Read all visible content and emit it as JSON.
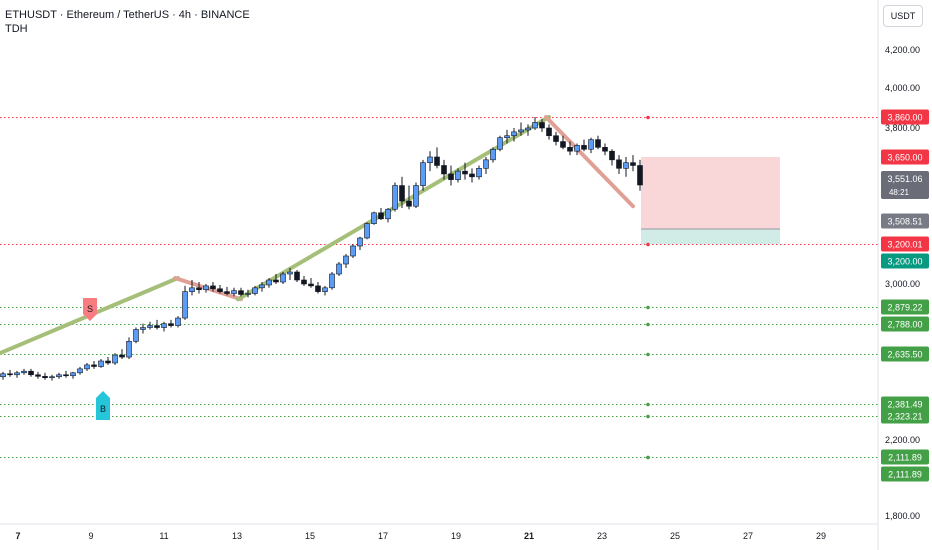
{
  "header": {
    "symbol": "ETHUSDT",
    "name": "Ethereum / TetherUS",
    "interval": "4h",
    "exchange": "BINANCE",
    "title": "ETHUSDT · Ethereum / TetherUS · 4h · BINANCE",
    "indicator": "TDH"
  },
  "currency_button": "USDT",
  "price_axis": {
    "ticks": [
      "4,200.00",
      "4,000.00",
      "3,800.00",
      "3,000.00",
      "2,200.00",
      "1,800.00"
    ]
  },
  "time_axis": {
    "ticks": [
      {
        "label": "7",
        "bold": true
      },
      {
        "label": "9",
        "bold": false
      },
      {
        "label": "11",
        "bold": false
      },
      {
        "label": "13",
        "bold": false
      },
      {
        "label": "15",
        "bold": false
      },
      {
        "label": "17",
        "bold": false
      },
      {
        "label": "19",
        "bold": false
      },
      {
        "label": "21",
        "bold": true
      },
      {
        "label": "23",
        "bold": false
      },
      {
        "label": "25",
        "bold": false
      },
      {
        "label": "27",
        "bold": false
      },
      {
        "label": "29",
        "bold": false
      }
    ]
  },
  "price_levels": [
    {
      "price": 3860,
      "label": "3,860.00",
      "kind": "resistance",
      "color": "#f23645"
    },
    {
      "price": 3200.01,
      "label": "3,200.01",
      "kind": "resistance",
      "color": "#f23645"
    },
    {
      "price": 2879.22,
      "label": "2,879.22",
      "kind": "support",
      "color": "#43a047"
    },
    {
      "price": 2788,
      "label": "2,788.00",
      "kind": "support",
      "color": "#43a047"
    },
    {
      "price": 2635.5,
      "label": "2,635.50",
      "kind": "support",
      "color": "#43a047"
    },
    {
      "price": 2381.49,
      "label": "2,381.49",
      "kind": "support",
      "color": "#43a047"
    },
    {
      "price": 2323.21,
      "label": "2,323.21",
      "kind": "support",
      "color": "#43a047"
    },
    {
      "price": 2111.89,
      "label": "2,111.89",
      "kind": "support",
      "color": "#43a047"
    },
    {
      "price": 2111.89,
      "label": "2,111.89",
      "kind": "support",
      "color": "#43a047"
    }
  ],
  "axis_badges": {
    "stop": {
      "price": 3650,
      "label": "3,650.00",
      "color": "#f23645"
    },
    "current": {
      "price": 3551.06,
      "label": "3,551.06",
      "countdown": "48:21",
      "color": "#6a6d78"
    },
    "entry": {
      "price": 3508.51,
      "label": "3,508.51",
      "color": "#787b86"
    },
    "target": {
      "price": 3200,
      "label": "3,200.00",
      "color": "#089981"
    }
  },
  "signals": [
    {
      "type": "sell",
      "label": "S",
      "color": "#f77c80"
    },
    {
      "type": "buy",
      "label": "B",
      "color": "#26c6da"
    }
  ],
  "colors": {
    "up_candle": "#5b9cf6",
    "down_candle": "#131722",
    "trend_up": "#a5be78",
    "trend_down": "#e0a095",
    "stop_zone": "#f9d6d7",
    "target_zone": "#d1ece6"
  },
  "chart_data": {
    "type": "candlestick",
    "candles": [
      [
        2520,
        2545,
        2505,
        2535
      ],
      [
        2535,
        2555,
        2520,
        2530
      ],
      [
        2530,
        2550,
        2515,
        2540
      ],
      [
        2540,
        2560,
        2530,
        2548
      ],
      [
        2548,
        2560,
        2520,
        2530
      ],
      [
        2530,
        2545,
        2510,
        2522
      ],
      [
        2522,
        2540,
        2505,
        2515
      ],
      [
        2515,
        2530,
        2500,
        2520
      ],
      [
        2520,
        2540,
        2510,
        2530
      ],
      [
        2530,
        2550,
        2515,
        2525
      ],
      [
        2525,
        2545,
        2510,
        2540
      ],
      [
        2540,
        2570,
        2530,
        2560
      ],
      [
        2560,
        2590,
        2550,
        2580
      ],
      [
        2580,
        2600,
        2560,
        2572
      ],
      [
        2572,
        2610,
        2565,
        2600
      ],
      [
        2600,
        2620,
        2580,
        2590
      ],
      [
        2590,
        2640,
        2580,
        2630
      ],
      [
        2630,
        2660,
        2610,
        2620
      ],
      [
        2620,
        2720,
        2610,
        2700
      ],
      [
        2700,
        2770,
        2690,
        2760
      ],
      [
        2760,
        2790,
        2740,
        2770
      ],
      [
        2770,
        2800,
        2760,
        2780
      ],
      [
        2780,
        2810,
        2760,
        2770
      ],
      [
        2770,
        2800,
        2750,
        2790
      ],
      [
        2790,
        2810,
        2770,
        2780
      ],
      [
        2780,
        2830,
        2770,
        2820
      ],
      [
        2820,
        2990,
        2810,
        2960
      ],
      [
        2960,
        3020,
        2940,
        2980
      ],
      [
        2980,
        3010,
        2950,
        2970
      ],
      [
        2970,
        3000,
        2955,
        2990
      ],
      [
        2990,
        3010,
        2960,
        2975
      ],
      [
        2975,
        2995,
        2950,
        2960
      ],
      [
        2960,
        2985,
        2940,
        2950
      ],
      [
        2950,
        2980,
        2935,
        2965
      ],
      [
        2965,
        2980,
        2935,
        2945
      ],
      [
        2945,
        2970,
        2930,
        2950
      ],
      [
        2950,
        2990,
        2940,
        2980
      ],
      [
        2980,
        3010,
        2960,
        2995
      ],
      [
        2995,
        3030,
        2980,
        3020
      ],
      [
        3020,
        3050,
        3000,
        3010
      ],
      [
        3010,
        3060,
        3000,
        3050
      ],
      [
        3050,
        3080,
        3020,
        3060
      ],
      [
        3060,
        3070,
        3010,
        3020
      ],
      [
        3020,
        3040,
        2990,
        3000
      ],
      [
        3000,
        3030,
        2980,
        2990
      ],
      [
        2990,
        3010,
        2950,
        2960
      ],
      [
        2960,
        2990,
        2940,
        2980
      ],
      [
        2980,
        3060,
        2970,
        3050
      ],
      [
        3050,
        3110,
        3040,
        3100
      ],
      [
        3100,
        3150,
        3080,
        3140
      ],
      [
        3140,
        3200,
        3130,
        3190
      ],
      [
        3190,
        3260,
        3170,
        3250
      ],
      [
        3250,
        3380,
        3240,
        3370
      ],
      [
        3370,
        3470,
        3360,
        3460
      ],
      [
        3460,
        3500,
        3400,
        3410
      ],
      [
        3410,
        3500,
        3380,
        3490
      ],
      [
        3490,
        3560,
        3470,
        3550
      ],
      [
        3550,
        3580,
        3500,
        3520
      ],
      [
        3520,
        3550,
        3490,
        3510
      ],
      [
        3510,
        3560,
        3500,
        3550
      ],
      [
        3550,
        3640,
        3540,
        3630
      ],
      [
        3630,
        3680,
        3600,
        3650
      ],
      [
        3650,
        3700,
        3610,
        3620
      ],
      [
        3620,
        3640,
        3570,
        3590
      ],
      [
        3590,
        3620,
        3550,
        3570
      ],
      [
        3570,
        3610,
        3560,
        3600
      ],
      [
        3600,
        3630,
        3570,
        3590
      ],
      [
        3590,
        3610,
        3560,
        3580
      ],
      [
        3580,
        3620,
        3570,
        3610
      ],
      [
        3610,
        3650,
        3590,
        3640
      ],
      [
        3640,
        3700,
        3630,
        3690
      ],
      [
        3690,
        3760,
        3680,
        3750
      ],
      [
        3750,
        3790,
        3720,
        3760
      ],
      [
        3760,
        3800,
        3730,
        3780
      ],
      [
        3780,
        3830,
        3760,
        3790
      ],
      [
        3790,
        3820,
        3760,
        3800
      ],
      [
        3800,
        3860,
        3790,
        3830
      ],
      [
        3830,
        3850,
        3780,
        3800
      ],
      [
        3800,
        3820,
        3740,
        3760
      ],
      [
        3760,
        3780,
        3710,
        3730
      ],
      [
        3730,
        3760,
        3690,
        3700
      ],
      [
        3700,
        3730,
        3660,
        3680
      ],
      [
        3680,
        3720,
        3660,
        3710
      ],
      [
        3710,
        3740,
        3680,
        3690
      ],
      [
        3690,
        3750,
        3670,
        3740
      ],
      [
        3740,
        3760,
        3690,
        3700
      ],
      [
        3700,
        3720,
        3660,
        3680
      ],
      [
        3680,
        3690,
        3620,
        3640
      ],
      [
        3640,
        3660,
        3590,
        3610
      ],
      [
        3610,
        3650,
        3580,
        3630
      ],
      [
        3630,
        3660,
        3600,
        3620
      ],
      [
        3620,
        3640,
        3540,
        3551.06
      ]
    ],
    "trend_line": [
      {
        "type": "up",
        "from": 2640,
        "to": 3030
      },
      {
        "type": "down",
        "from": 3030,
        "to": 2920
      },
      {
        "type": "up",
        "from": 2920,
        "to": 3860
      },
      {
        "type": "down",
        "from": 3860,
        "to": 3510
      }
    ]
  }
}
